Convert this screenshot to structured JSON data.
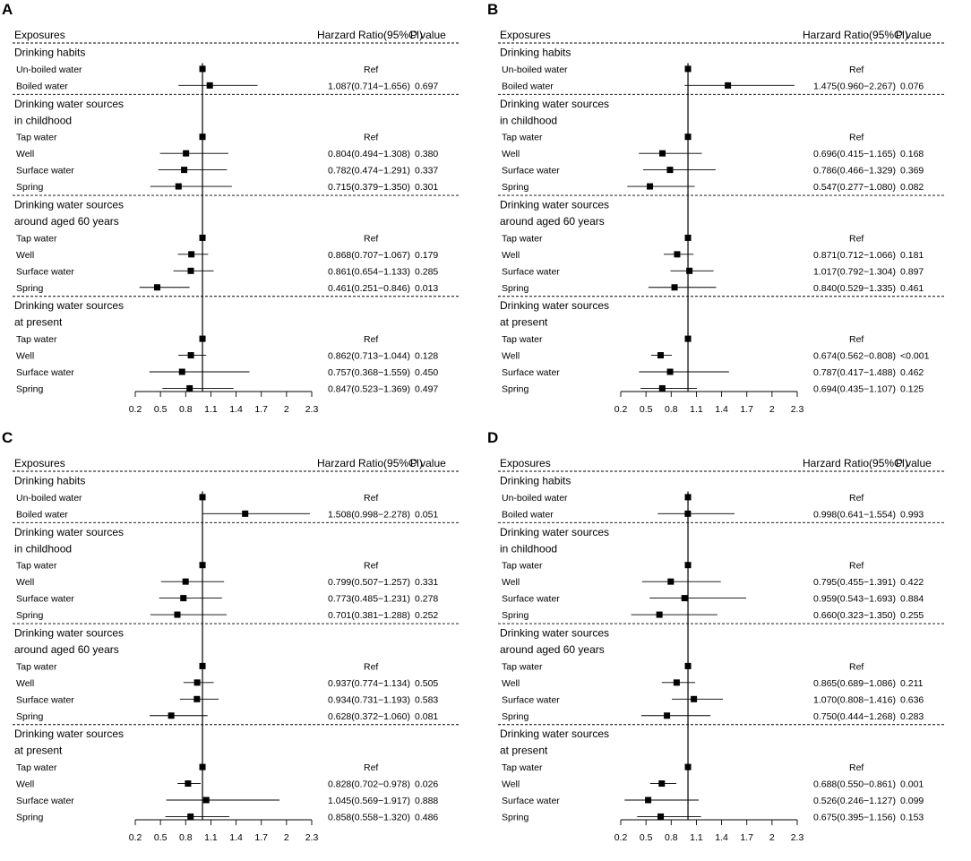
{
  "chart_data": [
    {
      "type": "forest",
      "panel_label": "A",
      "header": {
        "exposures": "Exposures",
        "hr": "Harzard Ratio(95%CI)",
        "p": "P value"
      },
      "sections": [
        {
          "title_lines": [
            "Drinking habits"
          ],
          "rows": [
            {
              "label": "Un-boiled water",
              "hr": 1.0,
              "lo": null,
              "hi": null,
              "text": "Ref",
              "p": ""
            },
            {
              "label": "Boiled water",
              "hr": 1.087,
              "lo": 0.714,
              "hi": 1.656,
              "text": "1.087(0.714−1.656)",
              "p": "0.697"
            }
          ]
        },
        {
          "title_lines": [
            "Drinking water sources",
            "in childhood"
          ],
          "rows": [
            {
              "label": "Tap water",
              "hr": 1.0,
              "lo": null,
              "hi": null,
              "text": "Ref",
              "p": ""
            },
            {
              "label": "Well",
              "hr": 0.804,
              "lo": 0.494,
              "hi": 1.308,
              "text": "0.804(0.494−1.308)",
              "p": "0.380"
            },
            {
              "label": "Surface water",
              "hr": 0.782,
              "lo": 0.474,
              "hi": 1.291,
              "text": "0.782(0.474−1.291)",
              "p": "0.337"
            },
            {
              "label": "Spring",
              "hr": 0.715,
              "lo": 0.379,
              "hi": 1.35,
              "text": "0.715(0.379−1.350)",
              "p": "0.301"
            }
          ]
        },
        {
          "title_lines": [
            "Drinking water sources",
            "around aged 60 years"
          ],
          "rows": [
            {
              "label": "Tap water",
              "hr": 1.0,
              "lo": null,
              "hi": null,
              "text": "Ref",
              "p": ""
            },
            {
              "label": "Well",
              "hr": 0.868,
              "lo": 0.707,
              "hi": 1.067,
              "text": "0.868(0.707−1.067)",
              "p": "0.179"
            },
            {
              "label": "Surface water",
              "hr": 0.861,
              "lo": 0.654,
              "hi": 1.133,
              "text": "0.861(0.654−1.133)",
              "p": "0.285"
            },
            {
              "label": "Spring",
              "hr": 0.461,
              "lo": 0.251,
              "hi": 0.846,
              "text": "0.461(0.251−0.846)",
              "p": "0.013"
            }
          ]
        },
        {
          "title_lines": [
            "Drinking water sources",
            "at present"
          ],
          "rows": [
            {
              "label": "Tap water",
              "hr": 1.0,
              "lo": null,
              "hi": null,
              "text": "Ref",
              "p": ""
            },
            {
              "label": "Well",
              "hr": 0.862,
              "lo": 0.713,
              "hi": 1.044,
              "text": "0.862(0.713−1.044)",
              "p": "0.128"
            },
            {
              "label": "Surface water",
              "hr": 0.757,
              "lo": 0.368,
              "hi": 1.559,
              "text": "0.757(0.368−1.559)",
              "p": "0.450"
            },
            {
              "label": "Spring",
              "hr": 0.847,
              "lo": 0.523,
              "hi": 1.369,
              "text": "0.847(0.523−1.369)",
              "p": "0.497"
            }
          ]
        }
      ],
      "x_ticks": [
        0.2,
        0.5,
        0.8,
        1.1,
        1.4,
        1.7,
        2,
        2.3
      ],
      "x_range": [
        0.2,
        2.3
      ],
      "reference_line": 1
    },
    {
      "type": "forest",
      "panel_label": "B",
      "header": {
        "exposures": "Exposures",
        "hr": "Harzard Ratio(95%CI)",
        "p": "P value"
      },
      "sections": [
        {
          "title_lines": [
            "Drinking habits"
          ],
          "rows": [
            {
              "label": "Un-boiled water",
              "hr": 1.0,
              "lo": null,
              "hi": null,
              "text": "Ref",
              "p": ""
            },
            {
              "label": "Boiled water",
              "hr": 1.475,
              "lo": 0.96,
              "hi": 2.267,
              "text": "1.475(0.960−2.267)",
              "p": "0.076"
            }
          ]
        },
        {
          "title_lines": [
            "Drinking water sources",
            "in childhood"
          ],
          "rows": [
            {
              "label": "Tap water",
              "hr": 1.0,
              "lo": null,
              "hi": null,
              "text": "Ref",
              "p": ""
            },
            {
              "label": "Well",
              "hr": 0.696,
              "lo": 0.415,
              "hi": 1.165,
              "text": "0.696(0.415−1.165)",
              "p": "0.168"
            },
            {
              "label": "Surface water",
              "hr": 0.786,
              "lo": 0.466,
              "hi": 1.329,
              "text": "0.786(0.466−1.329)",
              "p": "0.369"
            },
            {
              "label": "Spring",
              "hr": 0.547,
              "lo": 0.277,
              "hi": 1.08,
              "text": "0.547(0.277−1.080)",
              "p": "0.082"
            }
          ]
        },
        {
          "title_lines": [
            "Drinking water sources",
            "around aged 60 years"
          ],
          "rows": [
            {
              "label": "Tap water",
              "hr": 1.0,
              "lo": null,
              "hi": null,
              "text": "Ref",
              "p": ""
            },
            {
              "label": "Well",
              "hr": 0.871,
              "lo": 0.712,
              "hi": 1.066,
              "text": "0.871(0.712−1.066)",
              "p": "0.181"
            },
            {
              "label": "Surface water",
              "hr": 1.017,
              "lo": 0.792,
              "hi": 1.304,
              "text": "1.017(0.792−1.304)",
              "p": "0.897"
            },
            {
              "label": "Spring",
              "hr": 0.84,
              "lo": 0.529,
              "hi": 1.335,
              "text": "0.840(0.529−1.335)",
              "p": "0.461"
            }
          ]
        },
        {
          "title_lines": [
            "Drinking water sources",
            "at present"
          ],
          "rows": [
            {
              "label": "Tap water",
              "hr": 1.0,
              "lo": null,
              "hi": null,
              "text": "Ref",
              "p": ""
            },
            {
              "label": "Well",
              "hr": 0.674,
              "lo": 0.562,
              "hi": 0.808,
              "text": "0.674(0.562−0.808)",
              "p": "<0.001"
            },
            {
              "label": "Surface water",
              "hr": 0.787,
              "lo": 0.417,
              "hi": 1.488,
              "text": "0.787(0.417−1.488)",
              "p": "0.462"
            },
            {
              "label": "Spring",
              "hr": 0.694,
              "lo": 0.435,
              "hi": 1.107,
              "text": "0.694(0.435−1.107)",
              "p": "0.125"
            }
          ]
        }
      ],
      "x_ticks": [
        0.2,
        0.5,
        0.8,
        1.1,
        1.4,
        1.7,
        2,
        2.3
      ],
      "x_range": [
        0.2,
        2.3
      ],
      "reference_line": 1
    },
    {
      "type": "forest",
      "panel_label": "C",
      "header": {
        "exposures": "Exposures",
        "hr": "Harzard Ratio(95%CI)",
        "p": "P value"
      },
      "sections": [
        {
          "title_lines": [
            "Drinking habits"
          ],
          "rows": [
            {
              "label": "Un-boiled water",
              "hr": 1.0,
              "lo": null,
              "hi": null,
              "text": "Ref",
              "p": ""
            },
            {
              "label": "Boiled water",
              "hr": 1.508,
              "lo": 0.998,
              "hi": 2.278,
              "text": "1.508(0.998−2.278)",
              "p": "0.051"
            }
          ]
        },
        {
          "title_lines": [
            "Drinking water sources",
            "in childhood"
          ],
          "rows": [
            {
              "label": "Tap water",
              "hr": 1.0,
              "lo": null,
              "hi": null,
              "text": "Ref",
              "p": ""
            },
            {
              "label": "Well",
              "hr": 0.799,
              "lo": 0.507,
              "hi": 1.257,
              "text": "0.799(0.507−1.257)",
              "p": "0.331"
            },
            {
              "label": "Surface water",
              "hr": 0.773,
              "lo": 0.485,
              "hi": 1.231,
              "text": "0.773(0.485−1.231)",
              "p": "0.278"
            },
            {
              "label": "Spring",
              "hr": 0.701,
              "lo": 0.381,
              "hi": 1.288,
              "text": "0.701(0.381−1.288)",
              "p": "0.252"
            }
          ]
        },
        {
          "title_lines": [
            "Drinking water sources",
            "around aged 60 years"
          ],
          "rows": [
            {
              "label": "Tap water",
              "hr": 1.0,
              "lo": null,
              "hi": null,
              "text": "Ref",
              "p": ""
            },
            {
              "label": "Well",
              "hr": 0.937,
              "lo": 0.774,
              "hi": 1.134,
              "text": "0.937(0.774−1.134)",
              "p": "0.505"
            },
            {
              "label": "Surface water",
              "hr": 0.934,
              "lo": 0.731,
              "hi": 1.193,
              "text": "0.934(0.731−1.193)",
              "p": "0.583"
            },
            {
              "label": "Spring",
              "hr": 0.628,
              "lo": 0.372,
              "hi": 1.06,
              "text": "0.628(0.372−1.060)",
              "p": "0.081"
            }
          ]
        },
        {
          "title_lines": [
            "Drinking water sources",
            "at present"
          ],
          "rows": [
            {
              "label": "Tap water",
              "hr": 1.0,
              "lo": null,
              "hi": null,
              "text": "Ref",
              "p": ""
            },
            {
              "label": "Well",
              "hr": 0.828,
              "lo": 0.702,
              "hi": 0.978,
              "text": "0.828(0.702−0.978)",
              "p": "0.026"
            },
            {
              "label": "Surface water",
              "hr": 1.045,
              "lo": 0.569,
              "hi": 1.917,
              "text": "1.045(0.569−1.917)",
              "p": "0.888"
            },
            {
              "label": "Spring",
              "hr": 0.858,
              "lo": 0.558,
              "hi": 1.32,
              "text": "0.858(0.558−1.320)",
              "p": "0.486"
            }
          ]
        }
      ],
      "x_ticks": [
        0.2,
        0.5,
        0.8,
        1.1,
        1.4,
        1.7,
        2,
        2.3
      ],
      "x_range": [
        0.2,
        2.3
      ],
      "reference_line": 1
    },
    {
      "type": "forest",
      "panel_label": "D",
      "header": {
        "exposures": "Exposures",
        "hr": "Harzard Ratio(95%CI)",
        "p": "P value"
      },
      "sections": [
        {
          "title_lines": [
            "Drinking habits"
          ],
          "rows": [
            {
              "label": "Un-boiled water",
              "hr": 1.0,
              "lo": null,
              "hi": null,
              "text": "Ref",
              "p": ""
            },
            {
              "label": "Boiled water",
              "hr": 0.998,
              "lo": 0.641,
              "hi": 1.554,
              "text": "0.998(0.641−1.554)",
              "p": "0.993"
            }
          ]
        },
        {
          "title_lines": [
            "Drinking water sources",
            "in childhood"
          ],
          "rows": [
            {
              "label": "Tap water",
              "hr": 1.0,
              "lo": null,
              "hi": null,
              "text": "Ref",
              "p": ""
            },
            {
              "label": "Well",
              "hr": 0.795,
              "lo": 0.455,
              "hi": 1.391,
              "text": "0.795(0.455−1.391)",
              "p": "0.422"
            },
            {
              "label": "Surface water",
              "hr": 0.959,
              "lo": 0.543,
              "hi": 1.693,
              "text": "0.959(0.543−1.693)",
              "p": "0.884"
            },
            {
              "label": "Spring",
              "hr": 0.66,
              "lo": 0.323,
              "hi": 1.35,
              "text": "0.660(0.323−1.350)",
              "p": "0.255"
            }
          ]
        },
        {
          "title_lines": [
            "Drinking water sources",
            "around aged 60 years"
          ],
          "rows": [
            {
              "label": "Tap water",
              "hr": 1.0,
              "lo": null,
              "hi": null,
              "text": "Ref",
              "p": ""
            },
            {
              "label": "Well",
              "hr": 0.865,
              "lo": 0.689,
              "hi": 1.086,
              "text": "0.865(0.689−1.086)",
              "p": "0.211"
            },
            {
              "label": "Surface water",
              "hr": 1.07,
              "lo": 0.808,
              "hi": 1.416,
              "text": "1.070(0.808−1.416)",
              "p": "0.636"
            },
            {
              "label": "Spring",
              "hr": 0.75,
              "lo": 0.444,
              "hi": 1.268,
              "text": "0.750(0.444−1.268)",
              "p": "0.283"
            }
          ]
        },
        {
          "title_lines": [
            "Drinking water sources",
            "at present"
          ],
          "rows": [
            {
              "label": "Tap water",
              "hr": 1.0,
              "lo": null,
              "hi": null,
              "text": "Ref",
              "p": ""
            },
            {
              "label": "Well",
              "hr": 0.688,
              "lo": 0.55,
              "hi": 0.861,
              "text": "0.688(0.550−0.861)",
              "p": "0.001"
            },
            {
              "label": "Surface water",
              "hr": 0.526,
              "lo": 0.246,
              "hi": 1.127,
              "text": "0.526(0.246−1.127)",
              "p": "0.099"
            },
            {
              "label": "Spring",
              "hr": 0.675,
              "lo": 0.395,
              "hi": 1.156,
              "text": "0.675(0.395−1.156)",
              "p": "0.153"
            }
          ]
        }
      ],
      "x_ticks": [
        0.2,
        0.5,
        0.8,
        1.1,
        1.4,
        1.7,
        2,
        2.3
      ],
      "x_range": [
        0.2,
        2.3
      ],
      "reference_line": 1
    }
  ]
}
